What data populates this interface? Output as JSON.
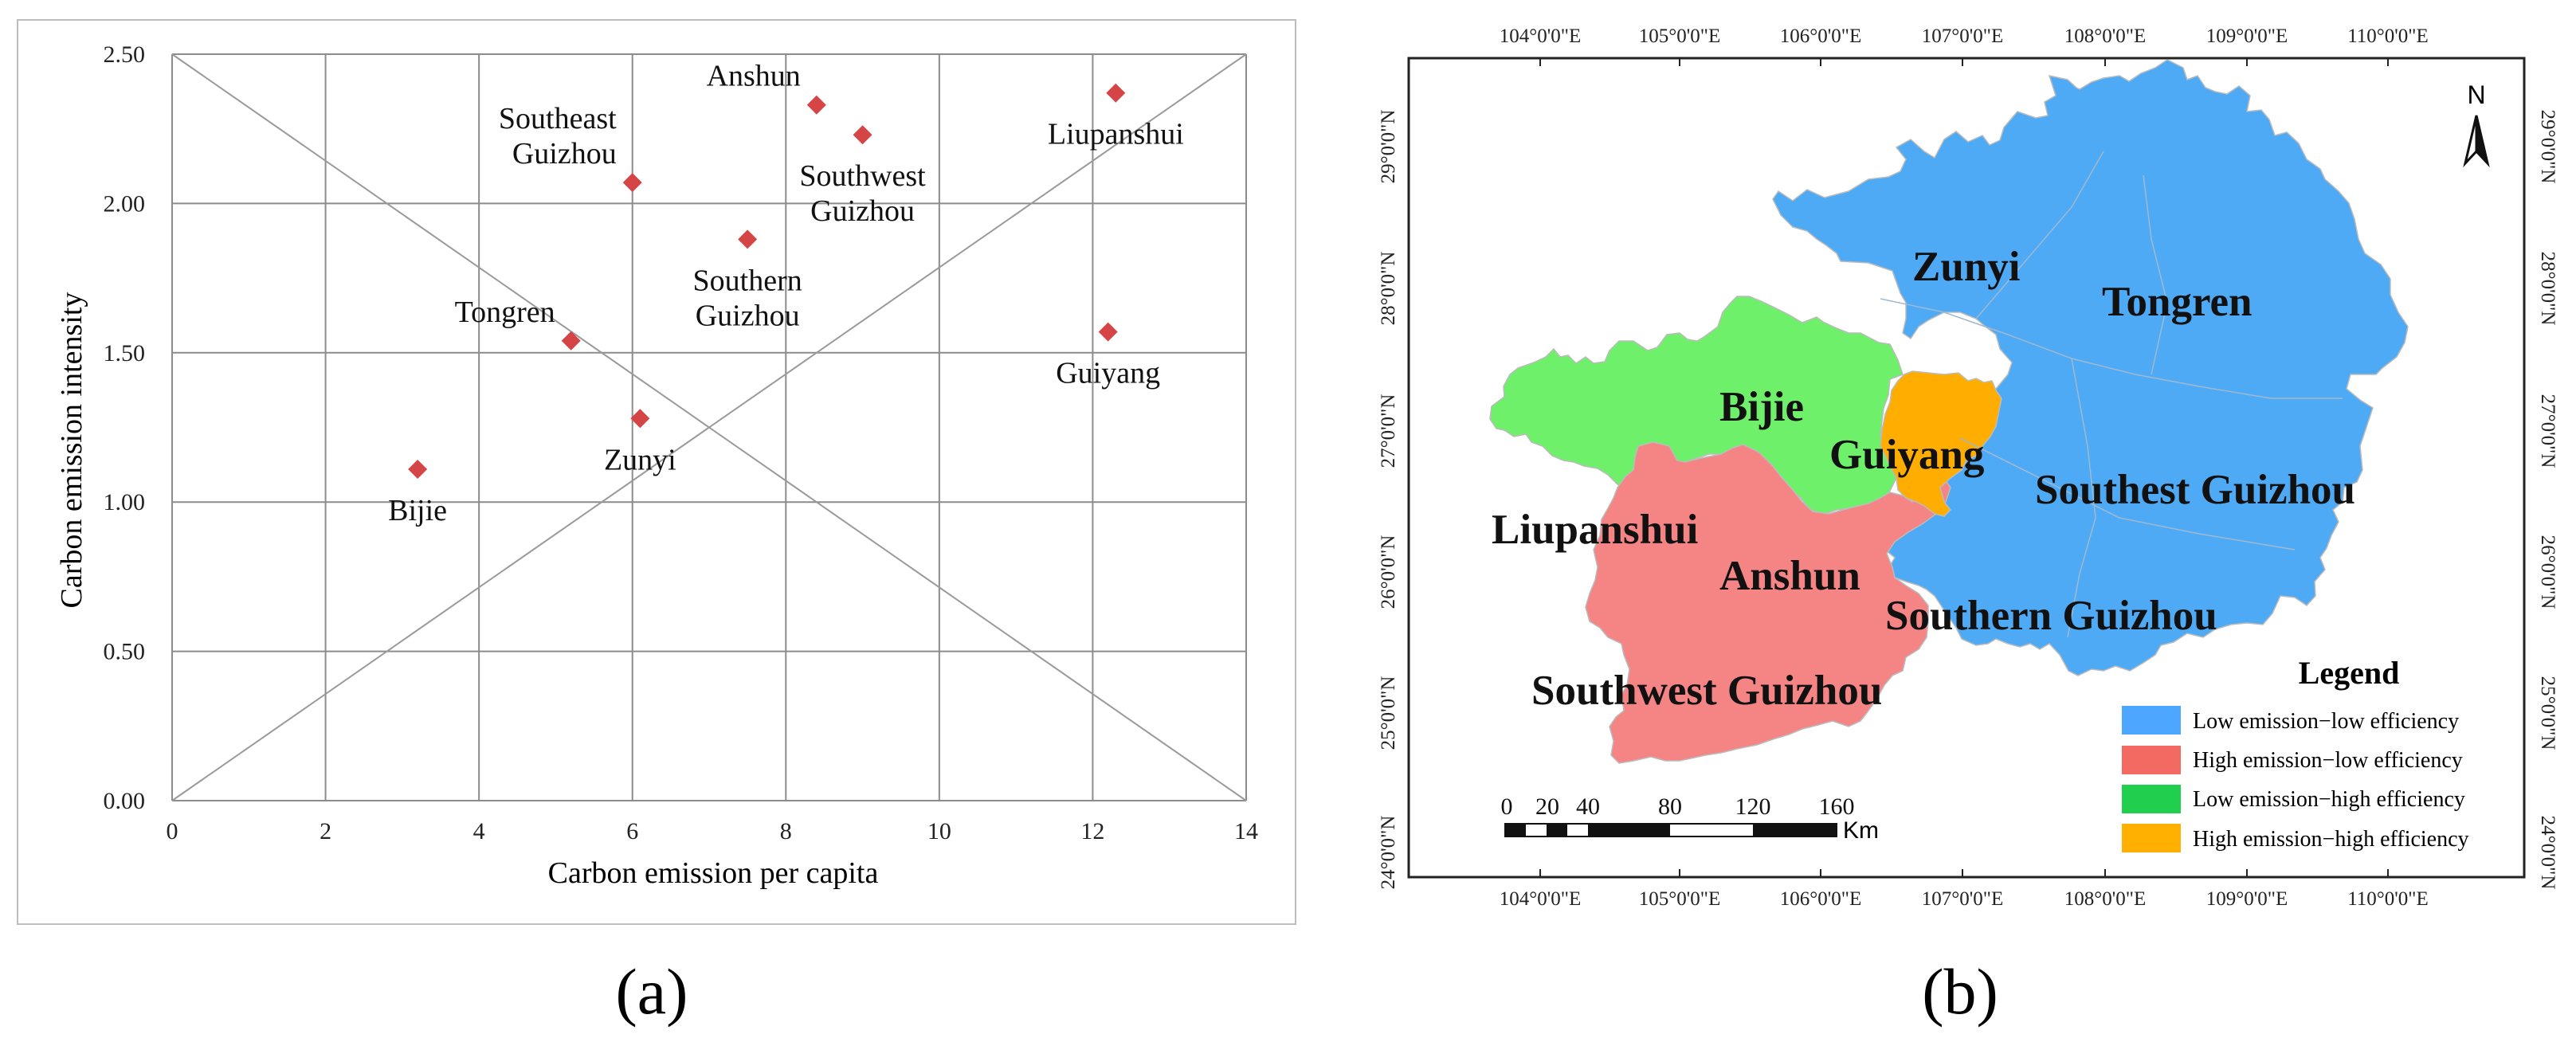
{
  "panel_a": {
    "caption": "(a)",
    "chart_data": {
      "type": "scatter",
      "title": "",
      "xlabel": "Carbon emission per capita",
      "ylabel": "Carbon emission intensity",
      "xlim": [
        0,
        14
      ],
      "ylim": [
        0,
        2.5
      ],
      "xticks": [
        "0",
        "2",
        "4",
        "6",
        "8",
        "10",
        "12",
        "14"
      ],
      "yticks": [
        "0.00",
        "0.50",
        "1.00",
        "1.50",
        "2.00",
        "2.50"
      ],
      "grid": true,
      "marker_color": "#d64545",
      "reference_lines": [
        {
          "from": [
            0,
            0
          ],
          "to": [
            14,
            2.5
          ]
        },
        {
          "from": [
            0,
            2.5
          ],
          "to": [
            14,
            0
          ]
        }
      ],
      "points": [
        {
          "name": "Bijie",
          "label": [
            "Bijie"
          ],
          "x": 3.2,
          "y": 1.11,
          "label_pos": "below"
        },
        {
          "name": "Zunyi",
          "label": [
            "Zunyi"
          ],
          "x": 6.1,
          "y": 1.28,
          "label_pos": "below"
        },
        {
          "name": "Tongren",
          "label": [
            "Tongren"
          ],
          "x": 5.2,
          "y": 1.54,
          "label_pos": "above-left"
        },
        {
          "name": "Southern Guizhou",
          "label": [
            "Southern",
            "Guizhou"
          ],
          "x": 7.5,
          "y": 1.88,
          "label_pos": "below"
        },
        {
          "name": "Southeast Guizhou",
          "label": [
            "Southeast",
            "Guizhou"
          ],
          "x": 6.0,
          "y": 2.07,
          "label_pos": "above-left"
        },
        {
          "name": "Anshun",
          "label": [
            "Anshun"
          ],
          "x": 8.4,
          "y": 2.33,
          "label_pos": "above-left"
        },
        {
          "name": "Southwest Guizhou",
          "label": [
            "Southwest",
            "Guizhou"
          ],
          "x": 9.0,
          "y": 2.23,
          "label_pos": "below"
        },
        {
          "name": "Liupanshui",
          "label": [
            "Liupanshui"
          ],
          "x": 12.3,
          "y": 2.37,
          "label_pos": "below"
        },
        {
          "name": "Guiyang",
          "label": [
            "Guiyang"
          ],
          "x": 12.2,
          "y": 1.57,
          "label_pos": "below"
        }
      ]
    }
  },
  "panel_b": {
    "caption": "(b)",
    "map": {
      "lon_labels": [
        "104°0'0\"E",
        "105°0'0\"E",
        "106°0'0\"E",
        "107°0'0\"E",
        "108°0'0\"E",
        "109°0'0\"E",
        "110°0'0\"E"
      ],
      "lat_labels": [
        "24°0'0\"N",
        "25°0'0\"N",
        "26°0'0\"N",
        "27°0'0\"N",
        "28°0'0\"N",
        "29°0'0\"N"
      ],
      "north_label": "N",
      "region_labels": [
        "Zunyi",
        "Tongren",
        "Bijie",
        "Guiyang",
        "Southest Guizhou",
        "Liupanshui",
        "Anshun",
        "Southern Guizhou",
        "Southwest Guizhou"
      ],
      "scale_labels": [
        "0",
        "20",
        "40",
        "80",
        "120",
        "160"
      ],
      "scale_unit": "Km",
      "legend_title": "Legend",
      "legend": [
        {
          "label": "Low emission−low efficiency",
          "color": "#4da6ff"
        },
        {
          "label": "High emission−low efficiency",
          "color": "#f26a62"
        },
        {
          "label": "Low emission−high efficiency",
          "color": "#21cf4f"
        },
        {
          "label": "High emission−high efficiency",
          "color": "#ffb000"
        }
      ],
      "region_colors": {
        "low_low": "#4faaf5",
        "high_low": "#f58585",
        "low_high": "#6ff06a",
        "high_high": "#ffad00"
      }
    }
  }
}
